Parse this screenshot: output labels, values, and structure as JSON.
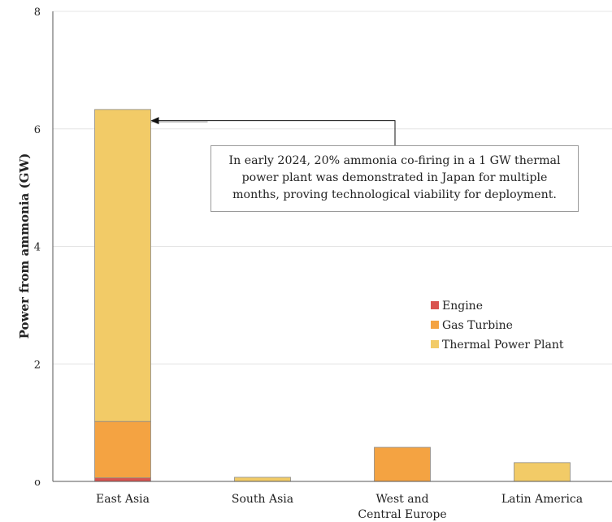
{
  "chart_data": {
    "type": "bar",
    "stacked": true,
    "categories": [
      "East Asia",
      "South Asia",
      "West and\nCentral Europe",
      "Latin America"
    ],
    "series": [
      {
        "name": "Engine",
        "color": "#d9534f",
        "values": [
          0.06,
          0,
          0,
          0
        ]
      },
      {
        "name": "Gas Turbine",
        "color": "#f4a342",
        "values": [
          0.96,
          0,
          0.58,
          0
        ]
      },
      {
        "name": "Thermal Power Plant",
        "color": "#f2cb67",
        "values": [
          5.31,
          0.07,
          0,
          0.32
        ]
      }
    ],
    "ylabel": "Power from ammonia (GW)",
    "yticks": [
      "o",
      "2",
      "4",
      "6",
      "8"
    ],
    "ylim": [
      0,
      8
    ],
    "grid": "horizontal",
    "legend_position": "center-right",
    "annotation": {
      "text": "In early 2024, 20% ammonia co-firing in a 1 GW thermal power plant was demonstrated in Japan for multiple months, proving technological viability for deployment.",
      "points_to": {
        "category": "East Asia",
        "value": 6.12
      }
    }
  }
}
